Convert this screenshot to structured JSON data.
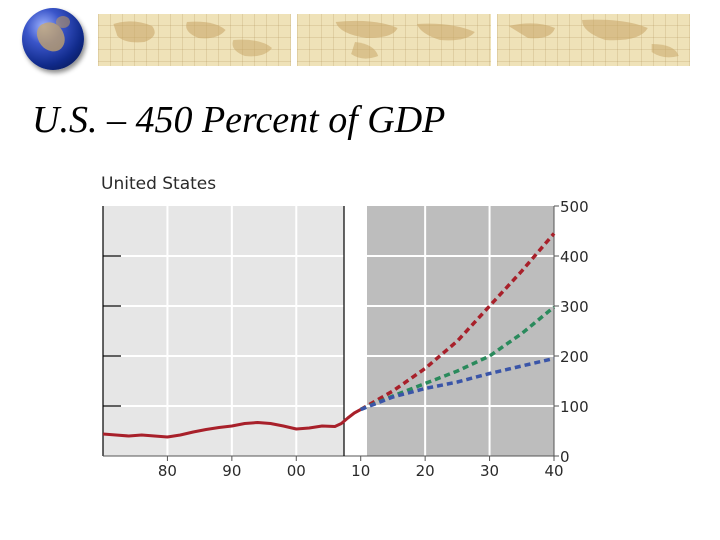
{
  "slide": {
    "title": "U.S. – 450 Percent of GDP",
    "globe_icon": "globe-icon",
    "banner_icon": "world-map-banner"
  },
  "chart_data": {
    "type": "line",
    "title": "United States",
    "xlabel": "",
    "ylabel": "",
    "xlim": [
      1970,
      2040
    ],
    "ylim": [
      0,
      500
    ],
    "x_ticks": [
      {
        "value": 1980,
        "label": "80"
      },
      {
        "value": 1990,
        "label": "90"
      },
      {
        "value": 2000,
        "label": "00"
      },
      {
        "value": 2010,
        "label": "10"
      },
      {
        "value": 2020,
        "label": "20"
      },
      {
        "value": 2030,
        "label": "30"
      },
      {
        "value": 2040,
        "label": "40"
      }
    ],
    "y_ticks": [
      0,
      100,
      200,
      300,
      400,
      500
    ],
    "y_axis_side": "right",
    "projection_start": 2007,
    "projection_shading": "#bdbdbd",
    "history_shading": "#e6e6e6",
    "grid": true,
    "series": [
      {
        "color": "#a8202a",
        "style": "solid",
        "x": [
          1970,
          1972,
          1974,
          1976,
          1978,
          1980,
          1982,
          1984,
          1986,
          1988,
          1990,
          1992,
          1994,
          1996,
          1998,
          2000,
          2002,
          2004,
          2006,
          2007,
          2008,
          2009,
          2010
        ],
        "y": [
          44,
          42,
          40,
          42,
          40,
          38,
          42,
          48,
          53,
          57,
          60,
          65,
          67,
          65,
          60,
          54,
          56,
          60,
          59,
          65,
          76,
          86,
          93
        ]
      },
      {
        "color": "#a8202a",
        "style": "dashed",
        "x": [
          2010,
          2015,
          2020,
          2025,
          2030,
          2035,
          2040
        ],
        "y": [
          93,
          130,
          175,
          230,
          300,
          370,
          445
        ]
      },
      {
        "color": "#2a8a5c",
        "style": "dashed",
        "x": [
          2010,
          2015,
          2020,
          2025,
          2030,
          2035,
          2040
        ],
        "y": [
          93,
          120,
          145,
          170,
          200,
          245,
          298
        ]
      },
      {
        "color": "#3a55a8",
        "style": "dashed",
        "x": [
          2010,
          2015,
          2020,
          2025,
          2030,
          2035,
          2040
        ],
        "y": [
          93,
          118,
          135,
          148,
          165,
          180,
          195
        ]
      }
    ]
  }
}
